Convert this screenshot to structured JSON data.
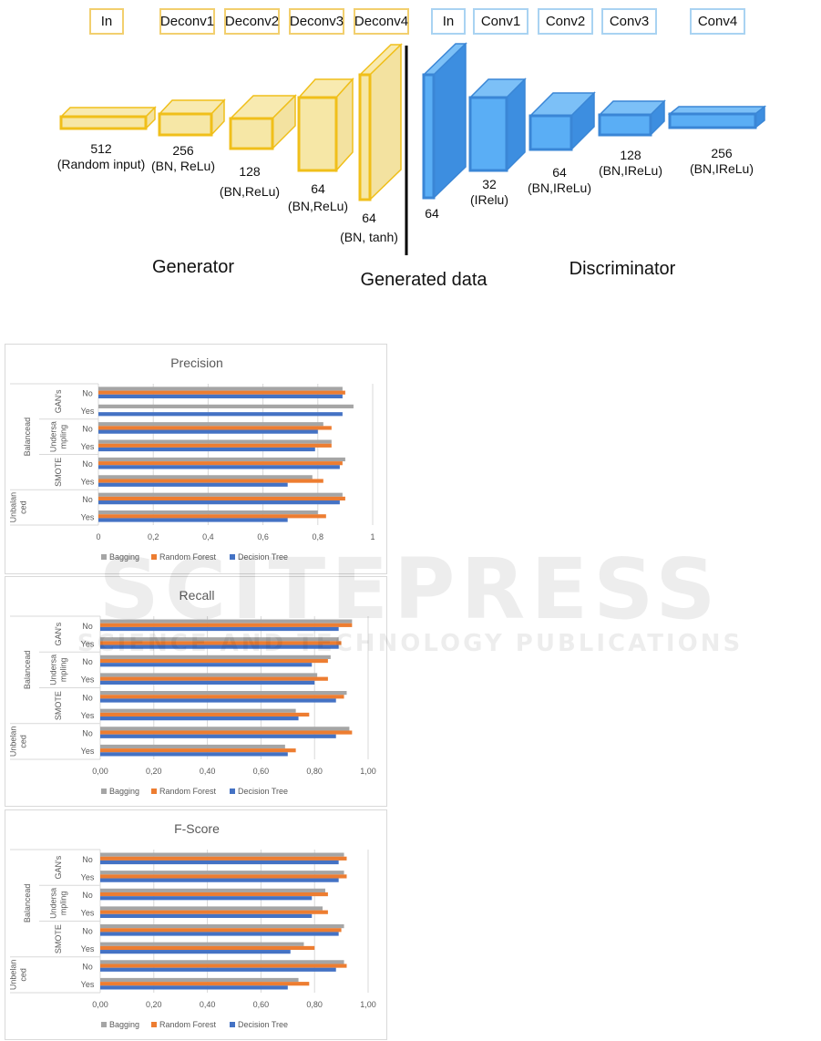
{
  "figure_top": {
    "generator_layers": [
      "In",
      "Deconv1",
      "Deconv2",
      "Deconv3",
      "Deconv4"
    ],
    "discriminator_layers": [
      "In",
      "Conv1",
      "Conv2",
      "Conv3",
      "Conv4"
    ],
    "generator_blocks": [
      {
        "size": "512",
        "desc": "(Random input)"
      },
      {
        "size": "256",
        "desc": "(BN, ReLu)"
      },
      {
        "size": "128",
        "desc": "(BN,ReLu)"
      },
      {
        "size": "64",
        "desc": "(BN,ReLu)"
      },
      {
        "size": "64",
        "desc": "(BN, tanh)"
      }
    ],
    "discriminator_blocks": [
      {
        "size": "64",
        "desc": ""
      },
      {
        "size": "32",
        "desc": "(IRelu)"
      },
      {
        "size": "64",
        "desc": "(BN,IReLu)"
      },
      {
        "size": "128",
        "desc": "(BN,IReLu)"
      },
      {
        "size": "256",
        "desc": "(BN,IReLu)"
      }
    ],
    "captions": {
      "generator": "Generator",
      "generated": "Generated data",
      "discriminator": "Discriminator"
    },
    "colors": {
      "generator_face": "#f6e7a6",
      "generator_edge": "#f0bf1a",
      "discriminator_face": "#5aaef5",
      "discriminator_side": "#3d8ee0"
    }
  },
  "watermark": {
    "line1": "SCITEPRESS",
    "line2": "SCIENCE AND TECHNOLOGY PUBLICATIONS"
  },
  "chart_data": [
    {
      "type": "bar",
      "orientation": "horizontal",
      "title": "Precision",
      "groups": [
        {
          "outer": "Balancead",
          "inner": "GAN's"
        },
        {
          "outer": "Balancead",
          "inner": "Undersa mpling"
        },
        {
          "outer": "Balancead",
          "inner": "SMOTE"
        },
        {
          "outer": "Unbalan ced",
          "inner": ""
        }
      ],
      "categories": [
        "No",
        "Yes",
        "No",
        "Yes",
        "No",
        "Yes",
        "No",
        "Yes"
      ],
      "xlim": [
        0,
        1
      ],
      "xticks": [
        "0",
        "0,2",
        "0,4",
        "0,6",
        "0,8",
        "1"
      ],
      "grid": true,
      "legend": "bottom",
      "series": [
        {
          "name": "Bagging",
          "color": "#a5a5a5",
          "values": [
            0.89,
            0.93,
            0.82,
            0.85,
            0.9,
            0.78,
            0.89,
            0.8
          ]
        },
        {
          "name": "Random Forest",
          "color": "#ed7d31",
          "values": [
            0.9,
            0,
            0.85,
            0.85,
            0.89,
            0.82,
            0.9,
            0.83
          ]
        },
        {
          "name": "Decision Tree",
          "color": "#4472c4",
          "values": [
            0.89,
            0.89,
            0.8,
            0.79,
            0.88,
            0.69,
            0.88,
            0.69
          ]
        }
      ]
    },
    {
      "type": "bar",
      "orientation": "horizontal",
      "title": "Recall",
      "groups": [
        {
          "outer": "Balancead",
          "inner": "GAN's"
        },
        {
          "outer": "Balancead",
          "inner": "Undersa mpling"
        },
        {
          "outer": "Balancead",
          "inner": "SMOTE"
        },
        {
          "outer": "Unbelan ced",
          "inner": ""
        }
      ],
      "categories": [
        "No",
        "Yes",
        "No",
        "Yes",
        "No",
        "Yes",
        "No",
        "Yes"
      ],
      "xlim": [
        0,
        1
      ],
      "xticks": [
        "0,00",
        "0,20",
        "0,40",
        "0,60",
        "0,80",
        "1,00"
      ],
      "grid": true,
      "legend": "bottom",
      "series": [
        {
          "name": "Bagging",
          "color": "#a5a5a5",
          "values": [
            0.94,
            0.89,
            0.86,
            0.81,
            0.92,
            0.73,
            0.93,
            0.69
          ]
        },
        {
          "name": "Random Forest",
          "color": "#ed7d31",
          "values": [
            0.94,
            0.9,
            0.85,
            0.85,
            0.91,
            0.78,
            0.94,
            0.73
          ]
        },
        {
          "name": "Decision Tree",
          "color": "#4472c4",
          "values": [
            0.89,
            0.89,
            0.79,
            0.8,
            0.88,
            0.74,
            0.88,
            0.7
          ]
        }
      ]
    },
    {
      "type": "bar",
      "orientation": "horizontal",
      "title": "F-Score",
      "groups": [
        {
          "outer": "Balancead",
          "inner": "GAN's"
        },
        {
          "outer": "Balancead",
          "inner": "Undersa mpling"
        },
        {
          "outer": "Balancead",
          "inner": "SMOTE"
        },
        {
          "outer": "Unbelan ced",
          "inner": ""
        }
      ],
      "categories": [
        "No",
        "Yes",
        "No",
        "Yes",
        "No",
        "Yes",
        "No",
        "Yes"
      ],
      "xlim": [
        0,
        1
      ],
      "xticks": [
        "0,00",
        "0,20",
        "0,40",
        "0,60",
        "0,80",
        "1,00"
      ],
      "grid": true,
      "legend": "bottom",
      "series": [
        {
          "name": "Bagging",
          "color": "#a5a5a5",
          "values": [
            0.91,
            0.91,
            0.84,
            0.83,
            0.91,
            0.76,
            0.91,
            0.74
          ]
        },
        {
          "name": "Random Forest",
          "color": "#ed7d31",
          "values": [
            0.92,
            0.92,
            0.85,
            0.85,
            0.9,
            0.8,
            0.92,
            0.78
          ]
        },
        {
          "name": "Decision Tree",
          "color": "#4472c4",
          "values": [
            0.89,
            0.89,
            0.79,
            0.79,
            0.89,
            0.71,
            0.88,
            0.7
          ]
        }
      ]
    }
  ]
}
